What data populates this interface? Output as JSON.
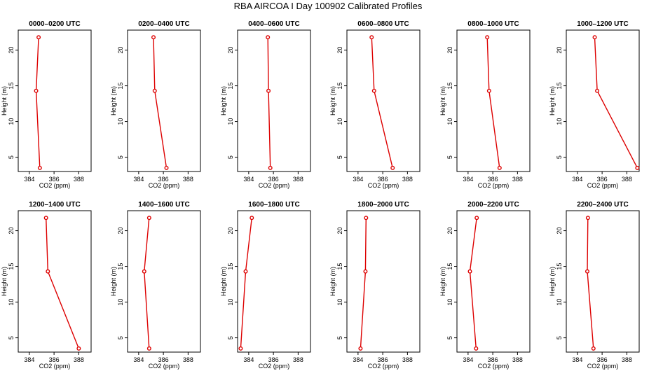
{
  "figure": {
    "title": "RBA AIRCOA I  Day 100902  Calibrated Profiles"
  },
  "colors": {
    "series": "#dd0000",
    "axis": "#000000"
  },
  "chart_data": [
    {
      "type": "line",
      "title": "0000–0200 UTC",
      "xlabel": "CO2 (ppm)",
      "ylabel": "Height (m)",
      "xlim": [
        383.1,
        389.0
      ],
      "ylim": [
        3.0,
        22.8
      ],
      "xticks": [
        384,
        386,
        388
      ],
      "yticks": [
        5,
        10,
        15,
        20
      ],
      "grid": false,
      "x": [
        384.85,
        384.55,
        384.75
      ],
      "y": [
        3.5,
        14.3,
        21.8
      ]
    },
    {
      "type": "line",
      "title": "0200–0400 UTC",
      "xlabel": "CO2 (ppm)",
      "ylabel": "Height (m)",
      "xlim": [
        383.1,
        389.0
      ],
      "ylim": [
        3.0,
        22.8
      ],
      "xticks": [
        384,
        386,
        388
      ],
      "yticks": [
        5,
        10,
        15,
        20
      ],
      "grid": false,
      "x": [
        386.25,
        385.3,
        385.2
      ],
      "y": [
        3.5,
        14.3,
        21.8
      ]
    },
    {
      "type": "line",
      "title": "0400–0600 UTC",
      "xlabel": "CO2 (ppm)",
      "ylabel": "Height (m)",
      "xlim": [
        383.1,
        389.0
      ],
      "ylim": [
        3.0,
        22.8
      ],
      "xticks": [
        384,
        386,
        388
      ],
      "yticks": [
        5,
        10,
        15,
        20
      ],
      "grid": false,
      "x": [
        385.75,
        385.6,
        385.55
      ],
      "y": [
        3.5,
        14.3,
        21.8
      ]
    },
    {
      "type": "line",
      "title": "0600–0800 UTC",
      "xlabel": "CO2 (ppm)",
      "ylabel": "Height (m)",
      "xlim": [
        383.1,
        389.0
      ],
      "ylim": [
        3.0,
        22.8
      ],
      "xticks": [
        384,
        386,
        388
      ],
      "yticks": [
        5,
        10,
        15,
        20
      ],
      "grid": false,
      "x": [
        386.8,
        385.3,
        385.1
      ],
      "y": [
        3.5,
        14.3,
        21.8
      ]
    },
    {
      "type": "line",
      "title": "0800–1000 UTC",
      "xlabel": "CO2 (ppm)",
      "ylabel": "Height (m)",
      "xlim": [
        383.1,
        389.0
      ],
      "ylim": [
        3.0,
        22.8
      ],
      "xticks": [
        384,
        386,
        388
      ],
      "yticks": [
        5,
        10,
        15,
        20
      ],
      "grid": false,
      "x": [
        386.55,
        385.7,
        385.55
      ],
      "y": [
        3.5,
        14.3,
        21.8
      ]
    },
    {
      "type": "line",
      "title": "1000–1200 UTC",
      "xlabel": "CO2 (ppm)",
      "ylabel": "Height (m)",
      "xlim": [
        383.1,
        389.0
      ],
      "ylim": [
        3.0,
        22.8
      ],
      "xticks": [
        384,
        386,
        388
      ],
      "yticks": [
        5,
        10,
        15,
        20
      ],
      "grid": false,
      "x": [
        388.85,
        385.6,
        385.4
      ],
      "y": [
        3.5,
        14.3,
        21.8
      ]
    },
    {
      "type": "line",
      "title": "1200–1400 UTC",
      "xlabel": "CO2 (ppm)",
      "ylabel": "Height (m)",
      "xlim": [
        383.1,
        389.0
      ],
      "ylim": [
        3.0,
        22.8
      ],
      "xticks": [
        384,
        386,
        388
      ],
      "yticks": [
        5,
        10,
        15,
        20
      ],
      "grid": false,
      "x": [
        388.0,
        385.5,
        385.35
      ],
      "y": [
        3.5,
        14.3,
        21.8
      ]
    },
    {
      "type": "line",
      "title": "1400–1600 UTC",
      "xlabel": "CO2 (ppm)",
      "ylabel": "Height (m)",
      "xlim": [
        383.1,
        389.0
      ],
      "ylim": [
        3.0,
        22.8
      ],
      "xticks": [
        384,
        386,
        388
      ],
      "yticks": [
        5,
        10,
        15,
        20
      ],
      "grid": false,
      "x": [
        384.85,
        384.45,
        384.85
      ],
      "y": [
        3.5,
        14.3,
        21.8
      ]
    },
    {
      "type": "line",
      "title": "1600–1800 UTC",
      "xlabel": "CO2 (ppm)",
      "ylabel": "Height (m)",
      "xlim": [
        383.1,
        389.0
      ],
      "ylim": [
        3.0,
        22.8
      ],
      "xticks": [
        384,
        386,
        388
      ],
      "yticks": [
        5,
        10,
        15,
        20
      ],
      "grid": false,
      "x": [
        383.35,
        383.75,
        384.25
      ],
      "y": [
        3.5,
        14.3,
        21.8
      ]
    },
    {
      "type": "line",
      "title": "1800–2000 UTC",
      "xlabel": "CO2 (ppm)",
      "ylabel": "Height (m)",
      "xlim": [
        383.1,
        389.0
      ],
      "ylim": [
        3.0,
        22.8
      ],
      "xticks": [
        384,
        386,
        388
      ],
      "yticks": [
        5,
        10,
        15,
        20
      ],
      "grid": false,
      "x": [
        384.2,
        384.6,
        384.65
      ],
      "y": [
        3.5,
        14.3,
        21.8
      ]
    },
    {
      "type": "line",
      "title": "2000–2200 UTC",
      "xlabel": "CO2 (ppm)",
      "ylabel": "Height (m)",
      "xlim": [
        383.1,
        389.0
      ],
      "ylim": [
        3.0,
        22.8
      ],
      "xticks": [
        384,
        386,
        388
      ],
      "yticks": [
        5,
        10,
        15,
        20
      ],
      "grid": false,
      "x": [
        384.65,
        384.15,
        384.7
      ],
      "y": [
        3.5,
        14.3,
        21.8
      ]
    },
    {
      "type": "line",
      "title": "2200–2400 UTC",
      "xlabel": "CO2 (ppm)",
      "ylabel": "Height (m)",
      "xlim": [
        383.1,
        389.0
      ],
      "ylim": [
        3.0,
        22.8
      ],
      "xticks": [
        384,
        386,
        388
      ],
      "yticks": [
        5,
        10,
        15,
        20
      ],
      "grid": false,
      "x": [
        385.3,
        384.8,
        384.85
      ],
      "y": [
        3.5,
        14.3,
        21.8
      ]
    }
  ]
}
